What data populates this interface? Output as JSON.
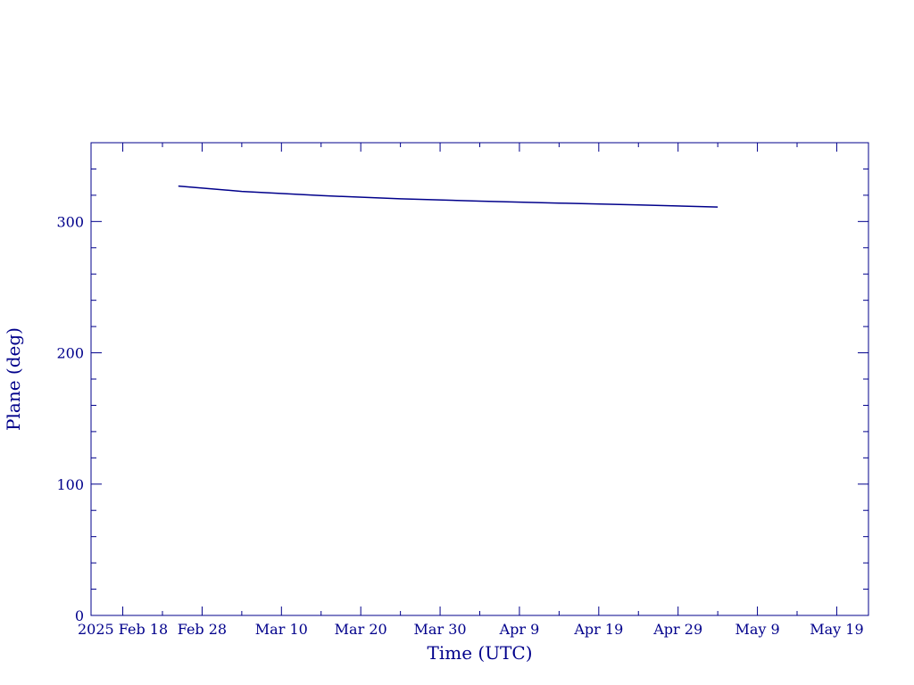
{
  "chart_data": {
    "type": "line",
    "xlabel": "Time (UTC)",
    "ylabel": "Plane (deg)",
    "xlim": [
      "2025-02-14",
      "2025-05-23"
    ],
    "ylim": [
      0,
      360
    ],
    "x_ticks": [
      {
        "date": "2025-02-18",
        "label": "2025 Feb 18"
      },
      {
        "date": "2025-02-28",
        "label": "Feb 28"
      },
      {
        "date": "2025-03-10",
        "label": "Mar 10"
      },
      {
        "date": "2025-03-20",
        "label": "Mar 20"
      },
      {
        "date": "2025-03-30",
        "label": "Mar 30"
      },
      {
        "date": "2025-04-09",
        "label": "Apr  9"
      },
      {
        "date": "2025-04-19",
        "label": "Apr 19"
      },
      {
        "date": "2025-04-29",
        "label": "Apr 29"
      },
      {
        "date": "2025-05-09",
        "label": "May  9"
      },
      {
        "date": "2025-05-19",
        "label": "May 19"
      }
    ],
    "y_ticks": [
      0,
      100,
      200,
      300
    ],
    "grid": false,
    "series": [
      {
        "color": "#00008b",
        "x": [
          "2025-02-25",
          "2025-03-05",
          "2025-03-15",
          "2025-03-25",
          "2025-04-04",
          "2025-04-14",
          "2025-04-24",
          "2025-05-04"
        ],
        "y": [
          327.0,
          322.9,
          319.7,
          317.3,
          315.5,
          314.0,
          312.6,
          311.0
        ]
      }
    ]
  }
}
